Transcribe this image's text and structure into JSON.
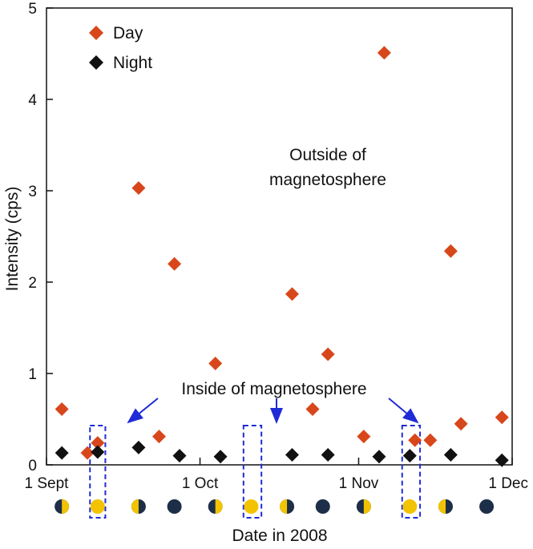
{
  "chart_data": {
    "type": "scatter",
    "xlabel": "Date in 2008",
    "ylabel": "Intensity (cps)",
    "xlim": [
      0,
      91
    ],
    "ylim": [
      0,
      5
    ],
    "yticks": [
      0,
      1,
      2,
      3,
      4,
      5
    ],
    "xticks": [
      {
        "value": 0,
        "label": "1 Sept"
      },
      {
        "value": 30,
        "label": "1 Oct"
      },
      {
        "value": 61,
        "label": "1 Nov"
      },
      {
        "value": 91,
        "label": "1 Dec"
      }
    ],
    "series": [
      {
        "name": "Day",
        "color": "#d8471b",
        "points": [
          {
            "x": 3,
            "y": 0.61
          },
          {
            "x": 8,
            "y": 0.13
          },
          {
            "x": 10,
            "y": 0.24
          },
          {
            "x": 18,
            "y": 3.03
          },
          {
            "x": 22,
            "y": 0.31
          },
          {
            "x": 25,
            "y": 2.2
          },
          {
            "x": 33,
            "y": 1.11
          },
          {
            "x": 48,
            "y": 1.87
          },
          {
            "x": 52,
            "y": 0.61
          },
          {
            "x": 55,
            "y": 1.21
          },
          {
            "x": 62,
            "y": 0.31
          },
          {
            "x": 66,
            "y": 4.51
          },
          {
            "x": 72,
            "y": 0.27
          },
          {
            "x": 75,
            "y": 0.27
          },
          {
            "x": 79,
            "y": 2.34
          },
          {
            "x": 81,
            "y": 0.45
          },
          {
            "x": 89,
            "y": 0.52
          }
        ]
      },
      {
        "name": "Night",
        "color": "#111111",
        "points": [
          {
            "x": 3,
            "y": 0.13
          },
          {
            "x": 10,
            "y": 0.14
          },
          {
            "x": 18,
            "y": 0.19
          },
          {
            "x": 26,
            "y": 0.1
          },
          {
            "x": 34,
            "y": 0.09
          },
          {
            "x": 48,
            "y": 0.11
          },
          {
            "x": 55,
            "y": 0.11
          },
          {
            "x": 65,
            "y": 0.09
          },
          {
            "x": 71,
            "y": 0.1
          },
          {
            "x": 79,
            "y": 0.11
          },
          {
            "x": 89,
            "y": 0.05
          }
        ]
      }
    ],
    "legend": {
      "placement": "top-left",
      "entries": [
        "Day",
        "Night"
      ]
    },
    "annotations": {
      "outside_line1": "Outside of",
      "outside_line2": "magnetosphere",
      "inside": "Inside of magnetosphere"
    },
    "magnetosphere_windows": [
      {
        "x_start": 8.5,
        "x_end": 11.5
      },
      {
        "x_start": 38.5,
        "x_end": 42
      },
      {
        "x_start": 69.5,
        "x_end": 73
      }
    ],
    "moon_phases": [
      {
        "x": 3,
        "phase": "first-quarter"
      },
      {
        "x": 10,
        "phase": "full"
      },
      {
        "x": 18,
        "phase": "last-quarter"
      },
      {
        "x": 25,
        "phase": "new"
      },
      {
        "x": 33,
        "phase": "first-quarter"
      },
      {
        "x": 40,
        "phase": "full"
      },
      {
        "x": 47,
        "phase": "last-quarter"
      },
      {
        "x": 54,
        "phase": "new"
      },
      {
        "x": 62,
        "phase": "first-quarter"
      },
      {
        "x": 71,
        "phase": "full"
      },
      {
        "x": 78,
        "phase": "last-quarter"
      },
      {
        "x": 86,
        "phase": "new"
      }
    ],
    "colors": {
      "day": "#d8471b",
      "night": "#111111",
      "box": "#1f2bd6",
      "moon_lit": "#f2c300",
      "moon_dark": "#1d2e48"
    }
  }
}
